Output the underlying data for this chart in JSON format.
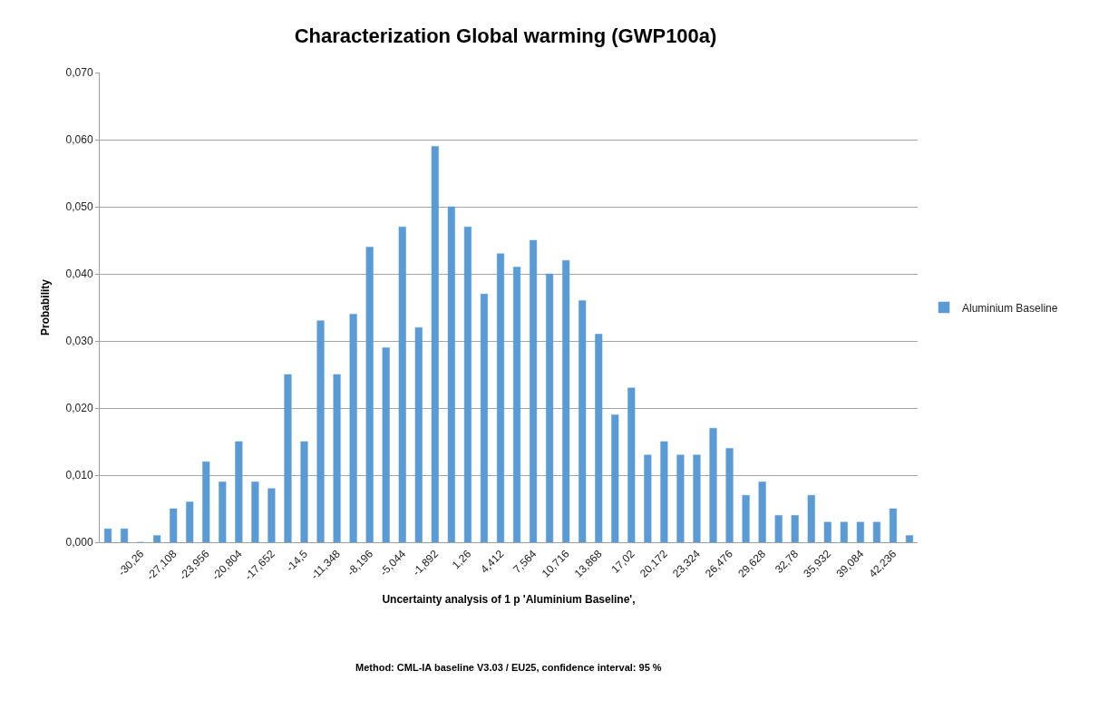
{
  "chart_data": {
    "type": "bar",
    "title": "Characterization Global warming (GWP100a)",
    "xlabel": "Uncertainty analysis of 1 p 'Aluminium Baseline',",
    "ylabel": "Probability",
    "annotations": [
      "Method: CML-IA baseline V3.03 / EU25, confidence interval: 95 %"
    ],
    "categories": [
      null,
      null,
      "-30,26",
      null,
      "-27,108",
      null,
      "-23,956",
      null,
      "-20,804",
      null,
      "-17,652",
      null,
      "-14,5",
      null,
      "-11,348",
      null,
      "-8,196",
      null,
      "-5,044",
      null,
      "-1,892",
      null,
      "1,26",
      null,
      "4,412",
      null,
      "7,564",
      null,
      "10,716",
      null,
      "13,868",
      null,
      "17,02",
      null,
      "20,172",
      null,
      "23,324",
      null,
      "26,476",
      null,
      "29,628",
      null,
      "32,78",
      null,
      "35,932",
      null,
      "39,084",
      null,
      "42,236",
      null
    ],
    "series": [
      {
        "name": "Aluminium Baseline",
        "color": "#5b9bd5",
        "values": [
          0.002,
          0.002,
          0,
          0.001,
          0.005,
          0.006,
          0.012,
          0.009,
          0.015,
          0.009,
          0.008,
          0.025,
          0.015,
          0.033,
          0.025,
          0.034,
          0.044,
          0.029,
          0.047,
          0.032,
          0.059,
          0.05,
          0.047,
          0.037,
          0.043,
          0.041,
          0.045,
          0.04,
          0.042,
          0.036,
          0.031,
          0.019,
          0.023,
          0.013,
          0.015,
          0.013,
          0.013,
          0.017,
          0.014,
          0.007,
          0.009,
          0.004,
          0.004,
          0.007,
          0.003,
          0.003,
          0.003,
          0.003,
          0.005,
          0.001
        ]
      }
    ],
    "ylim": [
      0,
      0.07
    ],
    "yticks": [
      {
        "value": 0,
        "label": "0,000"
      },
      {
        "value": 0.01,
        "label": "0,010"
      },
      {
        "value": 0.02,
        "label": "0,020"
      },
      {
        "value": 0.03,
        "label": "0,030"
      },
      {
        "value": 0.04,
        "label": "0,040"
      },
      {
        "value": 0.05,
        "label": "0,050"
      },
      {
        "value": 0.06,
        "label": "0,060"
      },
      {
        "value": 0.07,
        "label": "0,070"
      }
    ],
    "grid": "y",
    "legend": "right"
  }
}
